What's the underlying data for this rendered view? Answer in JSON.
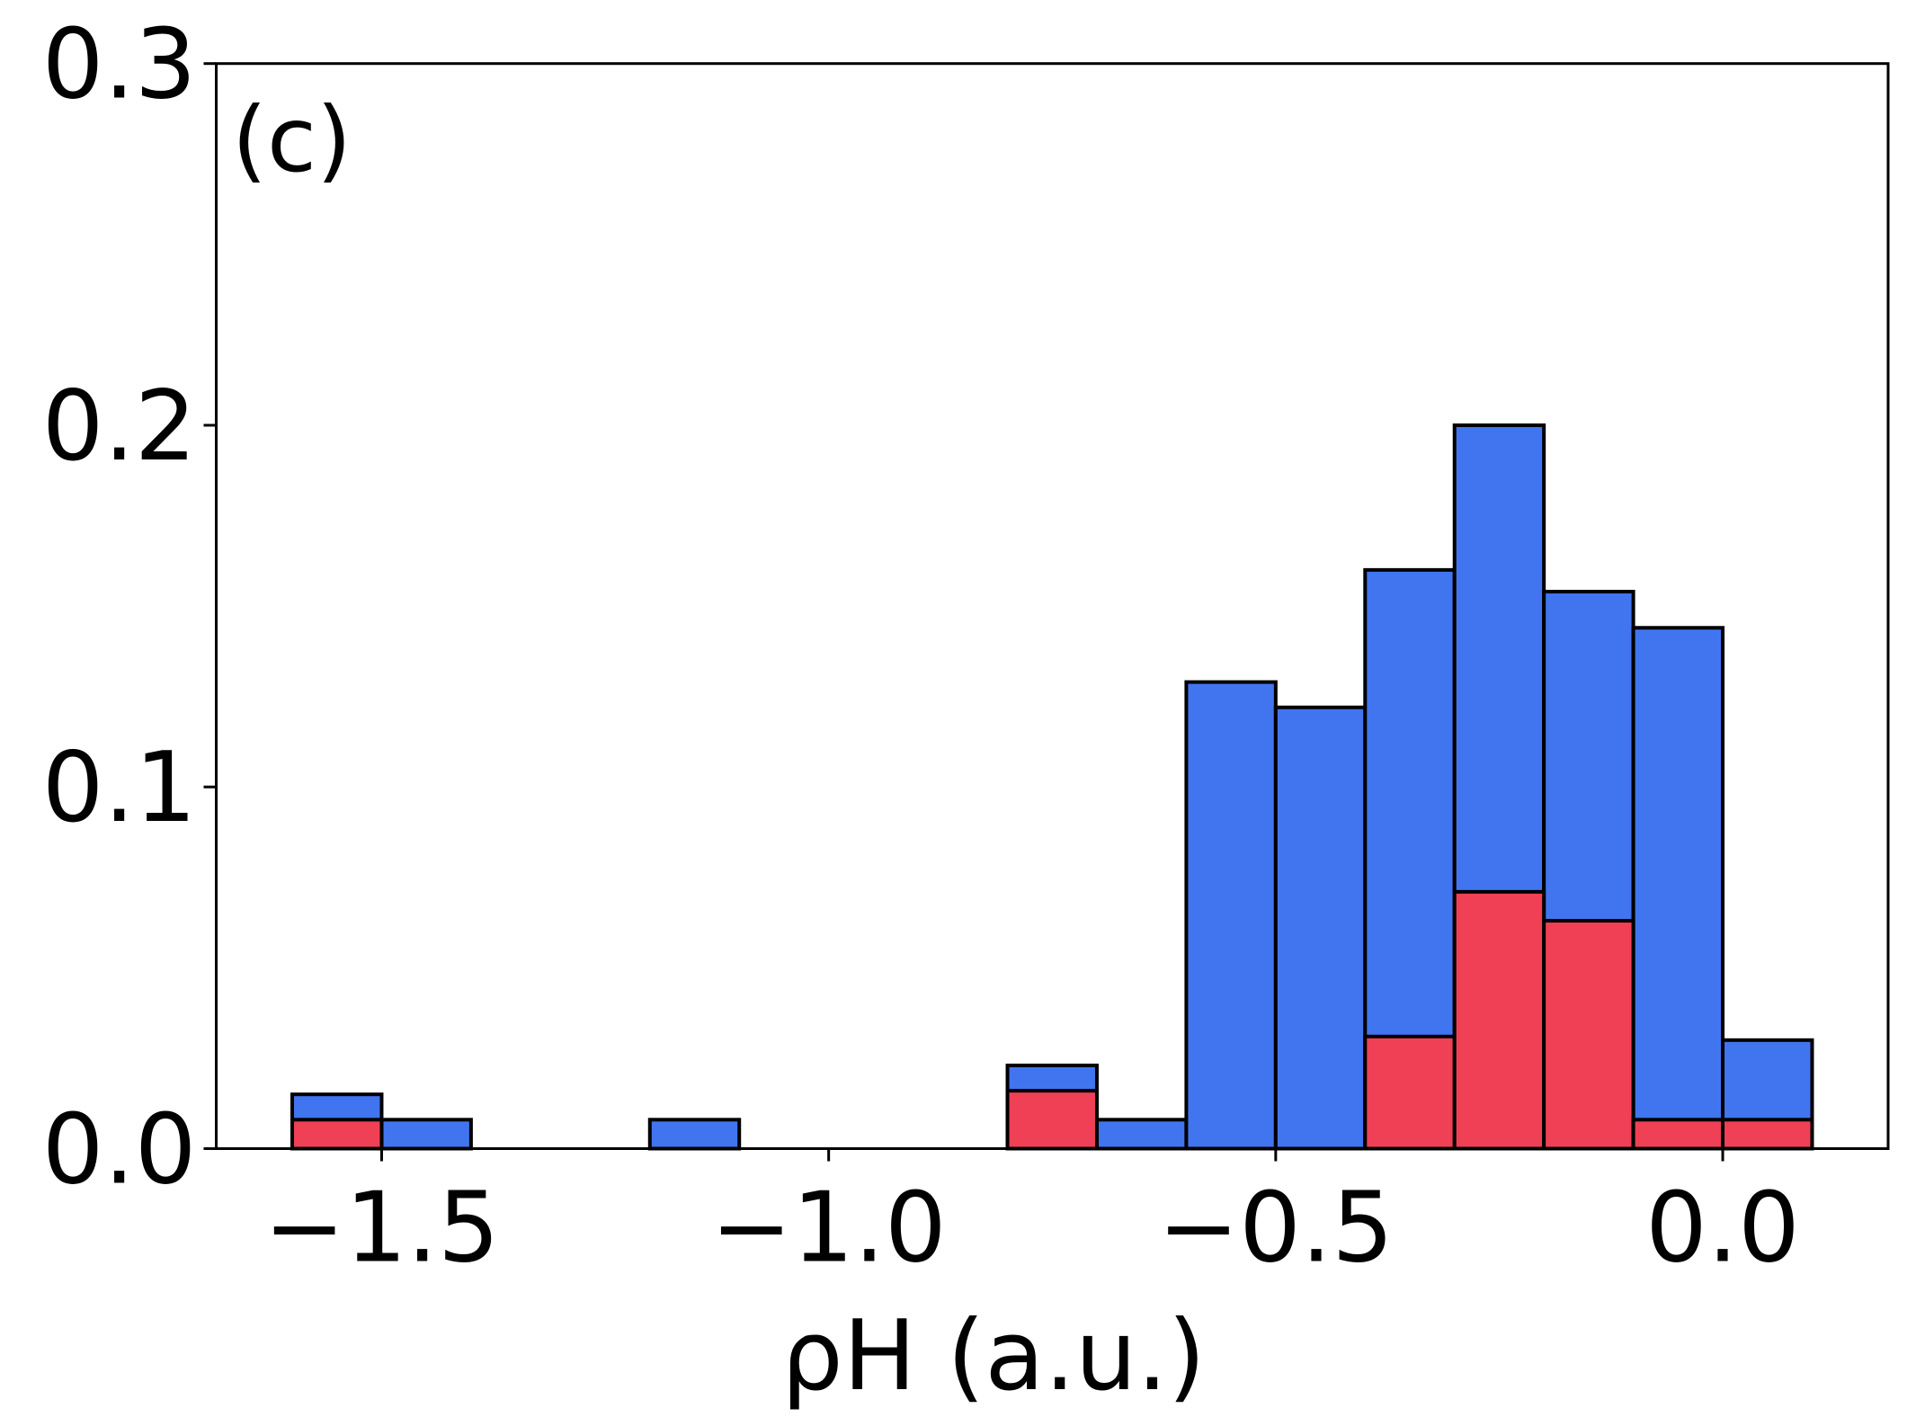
{
  "chart_data": {
    "type": "histogram",
    "annotation": "(c)",
    "xlabel": "ρH (a.u.)",
    "bins": [
      -1.6,
      -1.5,
      -1.4,
      -1.3,
      -1.2,
      -1.1,
      -1.0,
      -0.9,
      -0.8,
      -0.7,
      -0.6,
      -0.5,
      -0.4,
      -0.3,
      -0.2,
      -0.1,
      0.0,
      0.1
    ],
    "series": [
      {
        "color": "#4175f0",
        "values": [
          0.015,
          0.008,
          0,
          0,
          0.008,
          0,
          0,
          0,
          0.023,
          0.008,
          0.129,
          0.122,
          0.16,
          0.2,
          0.154,
          0.144,
          0.03
        ]
      },
      {
        "color": "#f04055",
        "values": [
          0.008,
          0,
          0,
          0,
          0,
          0,
          0,
          0,
          0.016,
          0,
          0,
          0,
          0.031,
          0.071,
          0.063,
          0.008,
          0.008
        ]
      }
    ],
    "xlim": [
      -1.685,
      0.185
    ],
    "ylim": [
      0,
      0.3
    ],
    "xticks": [
      {
        "value": -1.5,
        "label": "−1.5"
      },
      {
        "value": -1.0,
        "label": "−1.0"
      },
      {
        "value": -0.5,
        "label": "−0.5"
      },
      {
        "value": 0,
        "label": "0.0"
      }
    ],
    "yticks": [
      {
        "value": 0,
        "label": "0.0"
      },
      0.1,
      0.2,
      0.3
    ],
    "grid": false
  }
}
